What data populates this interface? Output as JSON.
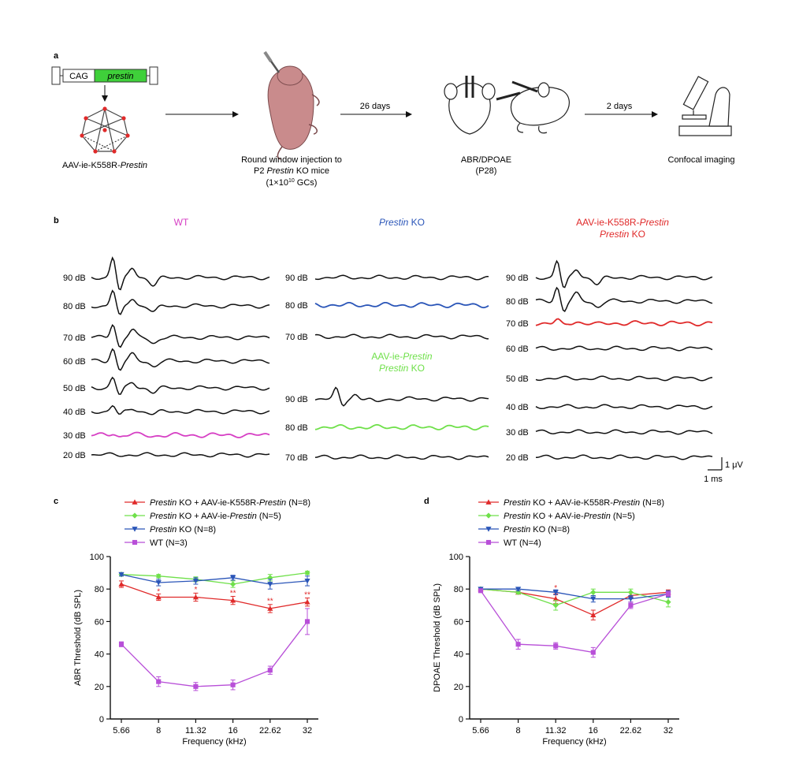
{
  "panel_a": {
    "label": "a",
    "construct": {
      "promoter": "CAG",
      "gene": "prestin"
    },
    "vector_label_prefix": "AAV-ie-K558R-",
    "vector_label_gene": "Prestin",
    "injection": {
      "line1": "Round window injection to",
      "line2_pre": "P2 ",
      "line2_gene": "Prestin",
      "line2_post": " KO mice",
      "line3_pre": "(1×10",
      "line3_sup": "10",
      "line3_post": " GCs)"
    },
    "step1": "26 days",
    "abr_label": "ABR/DPOAE",
    "abr_sub": "(P28)",
    "step2": "2 days",
    "confocal": "Confocal imaging"
  },
  "panel_b": {
    "label": "b",
    "wt_title": "WT",
    "ko_title_gene": "Prestin",
    "ko_title_post": " KO",
    "aav_ie_title_pre": "AAV-ie-",
    "aav_ie_title_gene": "Prestin",
    "aav_ie_title_l2_gene": "Prestin",
    "aav_ie_title_l2_post": " KO",
    "k558_title_pre": "AAV-ie-K558R-",
    "k558_title_gene": "Prestin",
    "k558_title_l2_gene": "Prestin",
    "k558_title_l2_post": " KO",
    "wt_levels": [
      "90 dB",
      "80 dB",
      "70 dB",
      "60 dB",
      "50 dB",
      "40 dB",
      "30 dB",
      "20 dB"
    ],
    "ko_levels": [
      "90 dB",
      "80 dB",
      "70 dB"
    ],
    "aav_ie_levels": [
      "90 dB",
      "80 dB",
      "70 dB"
    ],
    "k558_levels": [
      "90 dB",
      "80 dB",
      "70 dB",
      "60 dB",
      "50 dB",
      "40 dB",
      "30 dB",
      "20 dB"
    ],
    "scale_v": "1 μV",
    "scale_t": "1 ms",
    "colors": {
      "wt": "#d63fc4",
      "ko": "#2a55b8",
      "aav_ie": "#6fe04a",
      "k558": "#e02a2a",
      "trace": "#111111"
    }
  },
  "chart_data": [
    {
      "panel": "c",
      "type": "line",
      "ylabel": "ABR Threshold (dB SPL)",
      "xlabel": "Frequency (kHz)",
      "categories": [
        "5.66",
        "8",
        "11.32",
        "16",
        "22.62",
        "32"
      ],
      "ylim": [
        0,
        100
      ],
      "yticks": [
        0,
        20,
        40,
        60,
        80,
        100
      ],
      "legend": [
        {
          "pre": "",
          "gene": "Prestin",
          "post": " KO + AAV-ie-K558R-",
          "gene2": "Prestin",
          "tail": " (N=8)",
          "color": "#e02a2a",
          "marker": "triangle-up"
        },
        {
          "pre": "",
          "gene": "Prestin",
          "post": " KO + AAV-ie-",
          "gene2": "Prestin",
          "tail": " (N=5)",
          "color": "#6fe04a",
          "marker": "diamond"
        },
        {
          "pre": "",
          "gene": "Prestin",
          "post": " KO (N=8)",
          "gene2": "",
          "tail": "",
          "color": "#2a55b8",
          "marker": "triangle-down"
        },
        {
          "pre": "WT (N=3)",
          "gene": "",
          "post": "",
          "gene2": "",
          "tail": "",
          "color": "#b84fd8",
          "marker": "square"
        }
      ],
      "series": [
        {
          "values": [
            83,
            75,
            75,
            73,
            68,
            72
          ],
          "errors": [
            2,
            2,
            2.5,
            2.5,
            2.5,
            2.5
          ],
          "color": "#e02a2a",
          "marker": "triangle-up"
        },
        {
          "values": [
            89,
            88,
            86,
            83,
            87,
            90
          ],
          "errors": [
            1,
            1,
            1.5,
            2,
            2,
            1
          ],
          "color": "#6fe04a",
          "marker": "diamond"
        },
        {
          "values": [
            89,
            84,
            85,
            87,
            83,
            85
          ],
          "errors": [
            1,
            2,
            2,
            1.5,
            3,
            3
          ],
          "color": "#2a55b8",
          "marker": "triangle-down"
        },
        {
          "values": [
            46,
            23,
            20,
            21,
            30,
            60
          ],
          "errors": [
            1.5,
            3,
            2.5,
            3,
            2.5,
            8
          ],
          "color": "#b84fd8",
          "marker": "square"
        }
      ],
      "significance": [
        {
          "category": "8",
          "label": "*",
          "value": 79
        },
        {
          "category": "11.32",
          "label": "*",
          "value": 80
        },
        {
          "category": "16",
          "label": "**",
          "value": 78
        },
        {
          "category": "22.62",
          "label": "**",
          "value": 73
        },
        {
          "category": "32",
          "label": "**",
          "value": 77
        }
      ]
    },
    {
      "panel": "d",
      "type": "line",
      "ylabel": "DPOAE Threshold (dB SPL)",
      "xlabel": "Frequency (kHz)",
      "categories": [
        "5.66",
        "8",
        "11.32",
        "16",
        "22.62",
        "32"
      ],
      "ylim": [
        0,
        100
      ],
      "yticks": [
        0,
        20,
        40,
        60,
        80,
        100
      ],
      "legend": [
        {
          "pre": "",
          "gene": "Prestin",
          "post": " KO + AAV-ie-K558R-",
          "gene2": "Prestin",
          "tail": " (N=8)",
          "color": "#e02a2a",
          "marker": "triangle-up"
        },
        {
          "pre": "",
          "gene": "Prestin",
          "post": " KO + AAV-ie-",
          "gene2": "Prestin",
          "tail": " (N=5)",
          "color": "#6fe04a",
          "marker": "diamond"
        },
        {
          "pre": "",
          "gene": "Prestin",
          "post": " KO (N=8)",
          "gene2": "",
          "tail": "",
          "color": "#2a55b8",
          "marker": "triangle-down"
        },
        {
          "pre": "WT (N=4)",
          "gene": "",
          "post": "",
          "gene2": "",
          "tail": "",
          "color": "#b84fd8",
          "marker": "square"
        }
      ],
      "series": [
        {
          "values": [
            80,
            78,
            74,
            64,
            76,
            78
          ],
          "errors": [
            1,
            1,
            3,
            3,
            2,
            1.5
          ],
          "color": "#e02a2a",
          "marker": "triangle-up"
        },
        {
          "values": [
            80,
            78,
            70,
            78,
            78,
            72
          ],
          "errors": [
            1,
            1,
            3,
            2,
            2,
            3
          ],
          "color": "#6fe04a",
          "marker": "diamond"
        },
        {
          "values": [
            80,
            80,
            78,
            74,
            74,
            77
          ],
          "errors": [
            1,
            1,
            1.5,
            2,
            2,
            2
          ],
          "color": "#2a55b8",
          "marker": "triangle-down"
        },
        {
          "values": [
            79,
            46,
            45,
            41,
            70,
            77
          ],
          "errors": [
            1,
            3,
            2,
            3,
            2,
            1.5
          ],
          "color": "#b84fd8",
          "marker": "square"
        }
      ],
      "significance": [
        {
          "category": "11.32",
          "label": "*",
          "value": 81
        }
      ]
    }
  ]
}
